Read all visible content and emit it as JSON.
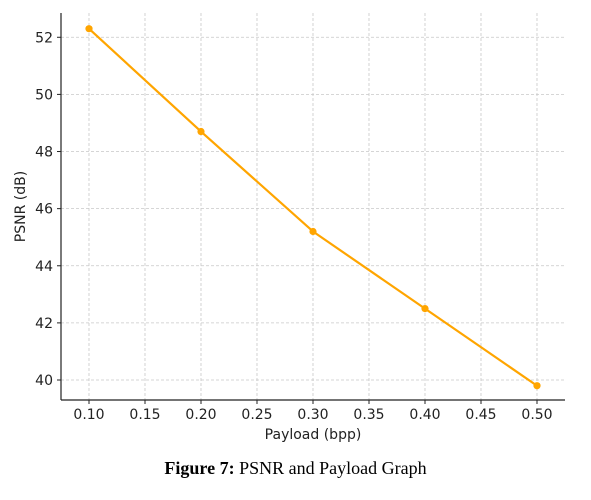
{
  "caption": {
    "label": "Figure 7:",
    "text": "PSNR and Payload Graph"
  },
  "chart_data": {
    "type": "line",
    "title": "",
    "xlabel": "Payload (bpp)",
    "ylabel": "PSNR (dB)",
    "xlim": [
      0.075,
      0.525
    ],
    "ylim": [
      39.3,
      52.85
    ],
    "xticks": [
      "0.10",
      "0.15",
      "0.20",
      "0.25",
      "0.30",
      "0.35",
      "0.40",
      "0.45",
      "0.50"
    ],
    "yticks": [
      "40",
      "42",
      "44",
      "46",
      "48",
      "50",
      "52"
    ],
    "grid": true,
    "color": "#FFA500",
    "series": [
      {
        "x": [
          0.1,
          0.2,
          0.3,
          0.4,
          0.5
        ],
        "y": [
          52.3,
          48.7,
          45.2,
          42.5,
          39.8
        ]
      }
    ]
  }
}
